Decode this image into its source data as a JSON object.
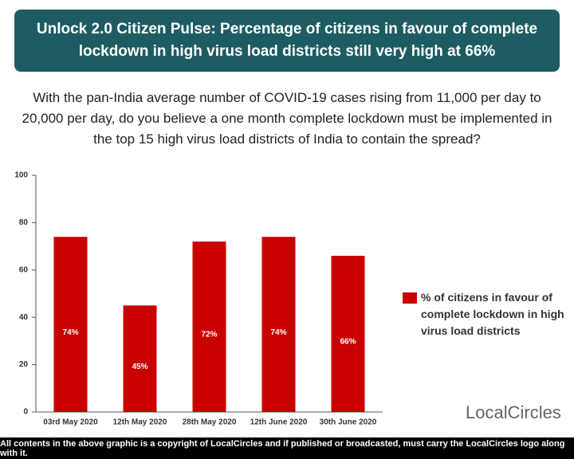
{
  "chart_data": {
    "type": "bar",
    "title": "Unlock 2.0 Citizen Pulse: Percentage of citizens in favour of complete lockdown in high virus load districts still very high at 66%",
    "subtitle": "With the pan-India average number of COVID-19 cases rising from 11,000 per day to 20,000 per day, do you believe a one month complete lockdown must be implemented in the top 15 high virus load districts of India to contain the spread?",
    "categories": [
      "03rd May 2020",
      "12th May 2020",
      "28th May 2020",
      "12th June 2020",
      "30th June 2020"
    ],
    "series": [
      {
        "name": "% of citizens in favour of complete lockdown in high virus load districts",
        "color": "#c90000",
        "values": [
          74,
          45,
          72,
          74,
          66
        ],
        "value_labels": [
          "74%",
          "45%",
          "72%",
          "74%",
          "66%"
        ]
      }
    ],
    "ylim": [
      0,
      100
    ],
    "yticks": [
      0,
      20,
      40,
      60,
      80,
      100
    ],
    "grid": false
  },
  "logo": "LocalCircles",
  "footer": "All contents in the above graphic is a copyright of LocalCircles and if published or broadcasted, must carry the LocalCircles logo along with it."
}
